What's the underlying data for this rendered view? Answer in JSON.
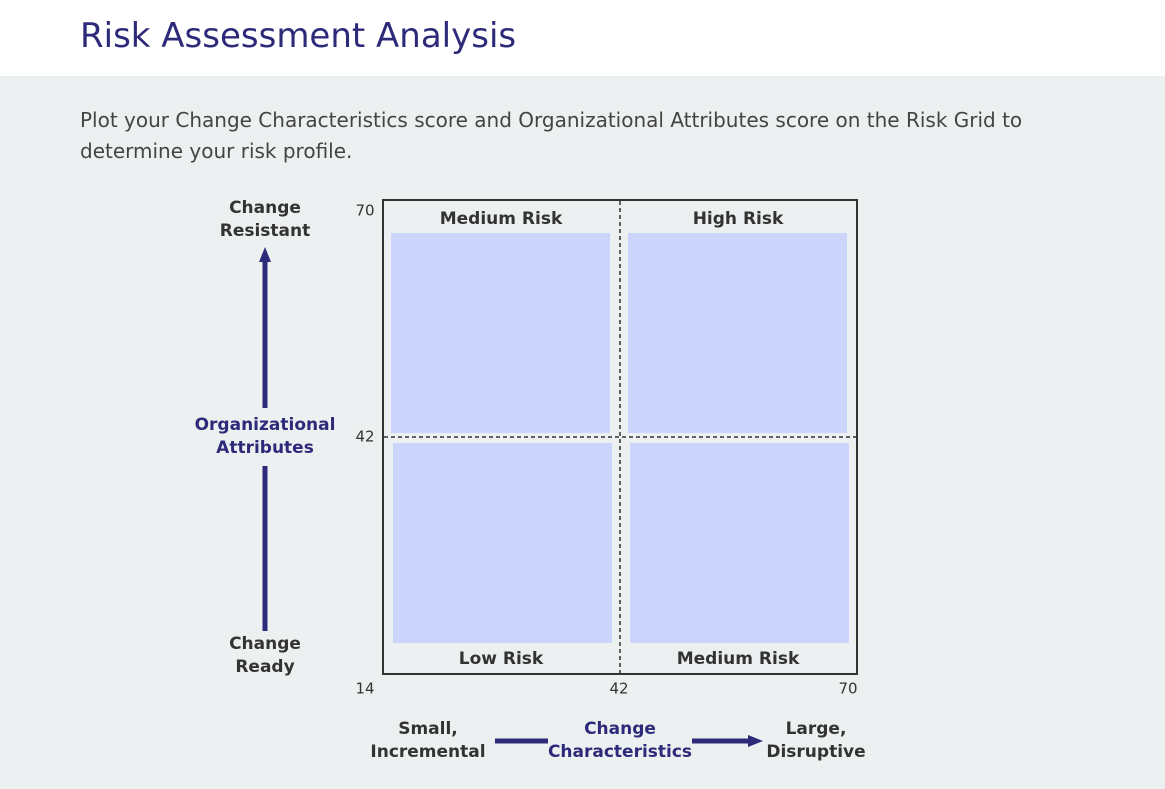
{
  "header": {
    "title": "Risk Assessment Analysis"
  },
  "intro": "Plot your Change Characteristics score and Organizational Attributes score on the Risk Grid to determine your risk profile.",
  "grid": {
    "quadrants": {
      "top_left": "Medium Risk",
      "top_right": "High Risk",
      "bottom_left": "Low Risk",
      "bottom_right": "Medium Risk"
    },
    "y_ticks": [
      "70",
      "42",
      "14"
    ],
    "x_ticks": [
      "42",
      "70"
    ],
    "y_axis": {
      "top": [
        "Change",
        "Resistant"
      ],
      "title": [
        "Organizational",
        "Attributes"
      ],
      "bottom": [
        "Change",
        "Ready"
      ]
    },
    "x_axis": {
      "left": [
        "Small,",
        "Incremental"
      ],
      "title": [
        "Change",
        "Characteristics"
      ],
      "right": [
        "Large,",
        "Disruptive"
      ]
    }
  }
}
